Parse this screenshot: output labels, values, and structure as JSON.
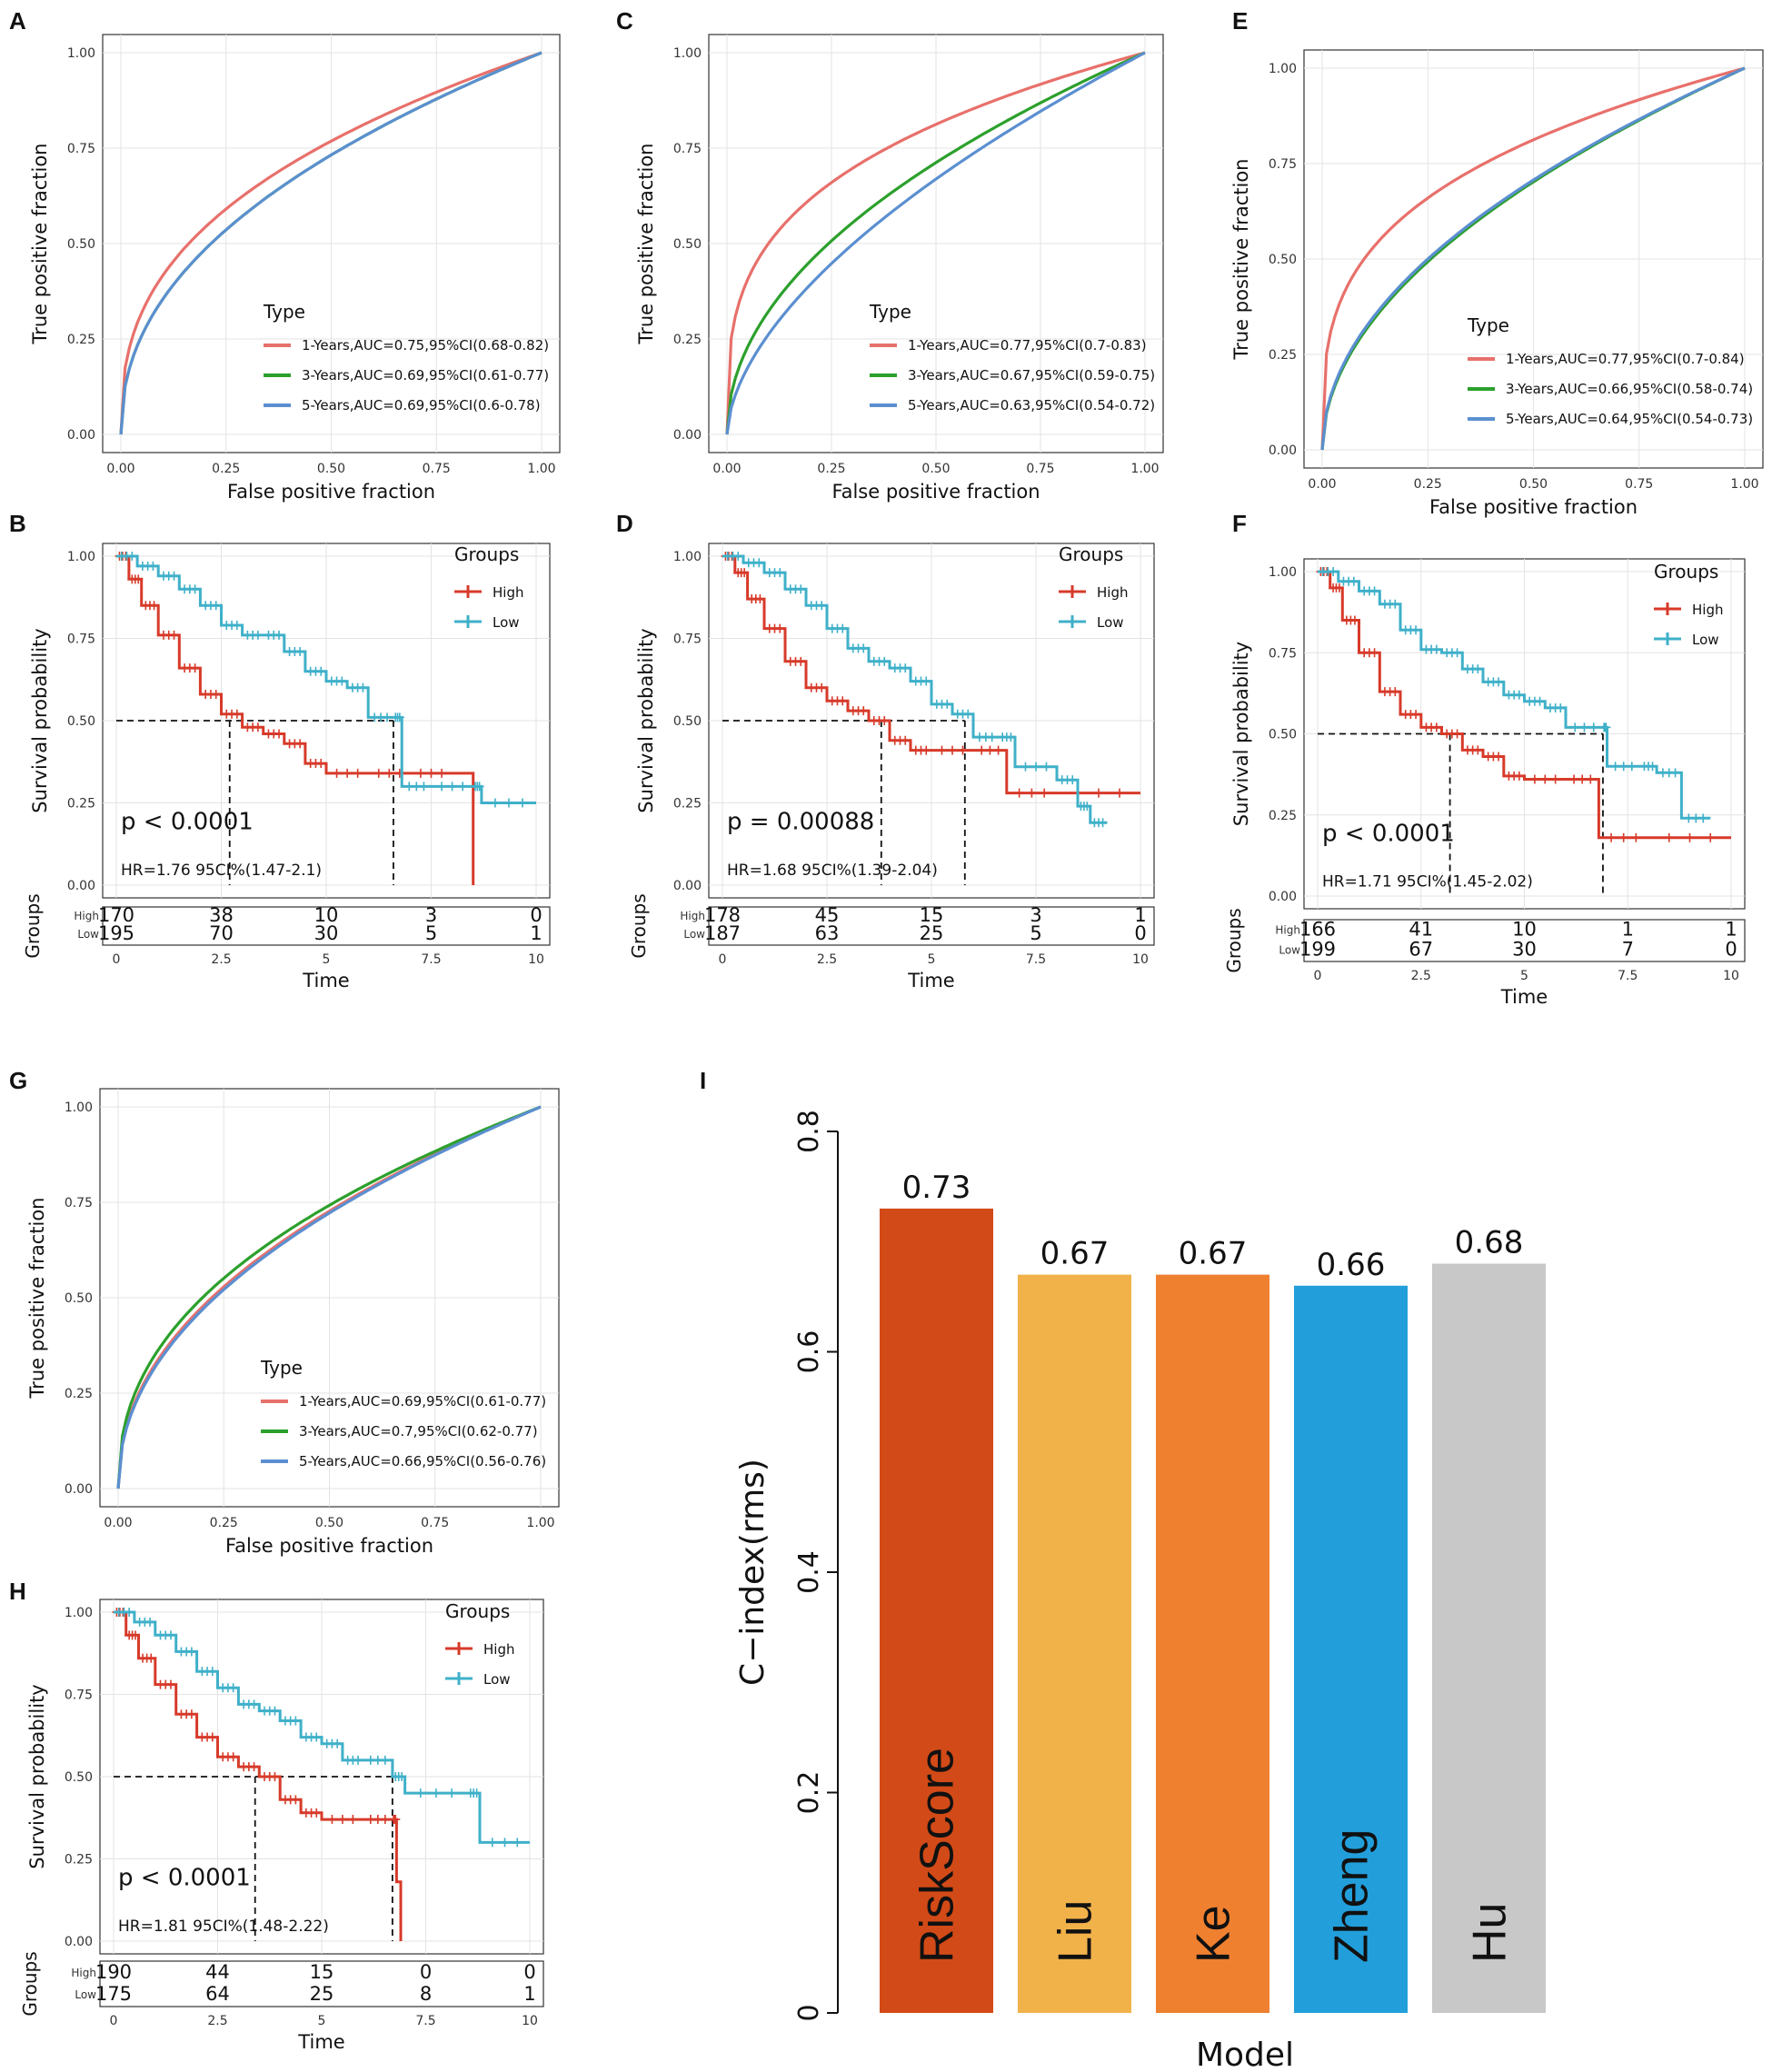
{
  "figure": {
    "letters": {
      "A": "A",
      "B": "B",
      "C": "C",
      "D": "D",
      "E": "E",
      "F": "F",
      "G": "G",
      "H": "H",
      "I": "I"
    }
  },
  "chart_data": [
    {
      "id": "A",
      "type": "line",
      "subtype": "roc",
      "xlabel": "False positive fraction",
      "ylabel": "True positive fraction",
      "ticks": [
        "0.00",
        "0.25",
        "0.50",
        "0.75",
        "1.00"
      ],
      "xlim": [
        0,
        1
      ],
      "ylim": [
        0,
        1
      ],
      "legend_title": "Type",
      "series": [
        {
          "name": "1-Years,AUC=0.75,95%CI(0.68-0.82)",
          "color": "#e8706b",
          "exponent": 0.38
        },
        {
          "name": "3-Years,AUC=0.69,95%CI(0.61-0.77)",
          "color": "#2ca02c",
          "exponent": 0.45
        },
        {
          "name": "5-Years,AUC=0.69,95%CI(0.6-0.78)",
          "color": "#5b8fd0",
          "exponent": 0.45
        }
      ]
    },
    {
      "id": "C",
      "type": "line",
      "subtype": "roc",
      "xlabel": "False positive fraction",
      "ylabel": "True positive fraction",
      "ticks": [
        "0.00",
        "0.25",
        "0.50",
        "0.75",
        "1.00"
      ],
      "xlim": [
        0,
        1
      ],
      "ylim": [
        0,
        1
      ],
      "legend_title": "Type",
      "series": [
        {
          "name": "1-Years,AUC=0.77,95%CI(0.7-0.83)",
          "color": "#e8706b",
          "exponent": 0.3
        },
        {
          "name": "3-Years,AUC=0.67,95%CI(0.59-0.75)",
          "color": "#2ca02c",
          "exponent": 0.49
        },
        {
          "name": "5-Years,AUC=0.63,95%CI(0.54-0.72)",
          "color": "#5b8fd0",
          "exponent": 0.58
        }
      ]
    },
    {
      "id": "E",
      "type": "line",
      "subtype": "roc",
      "xlabel": "False positive fraction",
      "ylabel": "True positive fraction",
      "ticks": [
        "0.00",
        "0.25",
        "0.50",
        "0.75",
        "1.00"
      ],
      "xlim": [
        0,
        1
      ],
      "ylim": [
        0,
        1
      ],
      "legend_title": "Type",
      "series": [
        {
          "name": "1-Years,AUC=0.77,95%CI(0.7-0.84)",
          "color": "#e8706b",
          "exponent": 0.3
        },
        {
          "name": "3-Years,AUC=0.66,95%CI(0.58-0.74)",
          "color": "#2ca02c",
          "exponent": 0.51
        },
        {
          "name": "5-Years,AUC=0.64,95%CI(0.54-0.73)",
          "color": "#5b8fd0",
          "exponent": 0.5
        }
      ]
    },
    {
      "id": "G",
      "type": "line",
      "subtype": "roc",
      "xlabel": "False positive fraction",
      "ylabel": "True positive fraction",
      "ticks": [
        "0.00",
        "0.25",
        "0.50",
        "0.75",
        "1.00"
      ],
      "xlim": [
        0,
        1
      ],
      "ylim": [
        0,
        1
      ],
      "legend_title": "Type",
      "series": [
        {
          "name": "1-Years,AUC=0.69,95%CI(0.61-0.77)",
          "color": "#e8706b",
          "exponent": 0.46
        },
        {
          "name": "3-Years,AUC=0.7,95%CI(0.62-0.77)",
          "color": "#2ca02c",
          "exponent": 0.43
        },
        {
          "name": "5-Years,AUC=0.66,95%CI(0.56-0.76)",
          "color": "#5b8fd0",
          "exponent": 0.47
        }
      ]
    },
    {
      "id": "B",
      "type": "line",
      "subtype": "km",
      "xlabel": "Time",
      "ylabel": "Survival probability",
      "xticks": [
        "0",
        "2.5",
        "5",
        "7.5",
        "10"
      ],
      "yticks": [
        "0.00",
        "0.25",
        "0.50",
        "0.75",
        "1.00"
      ],
      "xlim": [
        0,
        10
      ],
      "ylim": [
        0,
        1
      ],
      "legend_title": "Groups",
      "groups_label": "Groups",
      "p_text": "p < 0.0001",
      "hr_text": "HR=1.76 95CI%(1.47-2.1)",
      "median_high": 2.7,
      "median_low": 6.6,
      "series": [
        {
          "name": "High",
          "color": "#d73a2a",
          "points": [
            [
              0,
              1
            ],
            [
              0.3,
              0.93
            ],
            [
              0.6,
              0.85
            ],
            [
              1,
              0.76
            ],
            [
              1.5,
              0.66
            ],
            [
              2,
              0.58
            ],
            [
              2.5,
              0.52
            ],
            [
              3,
              0.48
            ],
            [
              3.5,
              0.46
            ],
            [
              4,
              0.43
            ],
            [
              4.5,
              0.37
            ],
            [
              5,
              0.34
            ],
            [
              6,
              0.34
            ],
            [
              7,
              0.34
            ],
            [
              8,
              0.34
            ],
            [
              8.5,
              0
            ]
          ]
        },
        {
          "name": "Low",
          "color": "#3fb0c9",
          "points": [
            [
              0,
              1
            ],
            [
              0.5,
              0.97
            ],
            [
              1,
              0.94
            ],
            [
              1.5,
              0.9
            ],
            [
              2,
              0.85
            ],
            [
              2.5,
              0.79
            ],
            [
              3,
              0.76
            ],
            [
              3.5,
              0.76
            ],
            [
              4,
              0.71
            ],
            [
              4.5,
              0.65
            ],
            [
              5,
              0.62
            ],
            [
              5.5,
              0.6
            ],
            [
              6,
              0.51
            ],
            [
              6.6,
              0.51
            ],
            [
              6.8,
              0.3
            ],
            [
              7.5,
              0.3
            ],
            [
              8.5,
              0.3
            ],
            [
              8.7,
              0.25
            ],
            [
              10,
              0.25
            ]
          ]
        }
      ],
      "risk_table": {
        "labels": [
          "High",
          "Low"
        ],
        "high": [
          "170",
          "38",
          "10",
          "3",
          "0"
        ],
        "low": [
          "195",
          "70",
          "30",
          "5",
          "1"
        ]
      }
    },
    {
      "id": "D",
      "type": "line",
      "subtype": "km",
      "xlabel": "Time",
      "ylabel": "Survival probability",
      "xticks": [
        "0",
        "2.5",
        "5",
        "7.5",
        "10"
      ],
      "yticks": [
        "0.00",
        "0.25",
        "0.50",
        "0.75",
        "1.00"
      ],
      "xlim": [
        0,
        10
      ],
      "ylim": [
        0,
        1
      ],
      "legend_title": "Groups",
      "groups_label": "Groups",
      "p_text": "p = 0.00088",
      "hr_text": "HR=1.68 95CI%(1.39-2.04)",
      "median_high": 3.8,
      "median_low": 5.8,
      "series": [
        {
          "name": "High",
          "color": "#d73a2a",
          "points": [
            [
              0,
              1
            ],
            [
              0.3,
              0.95
            ],
            [
              0.6,
              0.87
            ],
            [
              1,
              0.78
            ],
            [
              1.5,
              0.68
            ],
            [
              2,
              0.6
            ],
            [
              2.5,
              0.56
            ],
            [
              3,
              0.53
            ],
            [
              3.5,
              0.5
            ],
            [
              4,
              0.44
            ],
            [
              4.5,
              0.41
            ],
            [
              5,
              0.41
            ],
            [
              6,
              0.41
            ],
            [
              6.8,
              0.28
            ],
            [
              8,
              0.28
            ],
            [
              10,
              0.28
            ]
          ]
        },
        {
          "name": "Low",
          "color": "#3fb0c9",
          "points": [
            [
              0,
              1
            ],
            [
              0.5,
              0.98
            ],
            [
              1,
              0.95
            ],
            [
              1.5,
              0.9
            ],
            [
              2,
              0.85
            ],
            [
              2.5,
              0.78
            ],
            [
              3,
              0.72
            ],
            [
              3.5,
              0.68
            ],
            [
              4,
              0.66
            ],
            [
              4.5,
              0.62
            ],
            [
              5,
              0.55
            ],
            [
              5.5,
              0.52
            ],
            [
              6,
              0.45
            ],
            [
              6.6,
              0.45
            ],
            [
              7,
              0.36
            ],
            [
              8,
              0.32
            ],
            [
              8.5,
              0.24
            ],
            [
              8.8,
              0.19
            ],
            [
              9.2,
              0.19
            ]
          ]
        }
      ],
      "risk_table": {
        "labels": [
          "High",
          "Low"
        ],
        "high": [
          "178",
          "45",
          "15",
          "3",
          "1"
        ],
        "low": [
          "187",
          "63",
          "25",
          "5",
          "0"
        ]
      }
    },
    {
      "id": "F",
      "type": "line",
      "subtype": "km",
      "xlabel": "Time",
      "ylabel": "Survival probability",
      "xticks": [
        "0",
        "2.5",
        "5",
        "7.5",
        "10"
      ],
      "yticks": [
        "0.00",
        "0.25",
        "0.50",
        "0.75",
        "1.00"
      ],
      "xlim": [
        0,
        10
      ],
      "ylim": [
        0,
        1
      ],
      "legend_title": "Groups",
      "groups_label": "Groups",
      "p_text": "p < 0.0001",
      "hr_text": "HR=1.71 95CI%(1.45-2.02)",
      "median_high": 3.2,
      "median_low": 6.9,
      "series": [
        {
          "name": "High",
          "color": "#d73a2a",
          "points": [
            [
              0,
              1
            ],
            [
              0.3,
              0.95
            ],
            [
              0.6,
              0.85
            ],
            [
              1,
              0.75
            ],
            [
              1.5,
              0.63
            ],
            [
              2,
              0.56
            ],
            [
              2.5,
              0.52
            ],
            [
              3,
              0.5
            ],
            [
              3.5,
              0.45
            ],
            [
              4,
              0.43
            ],
            [
              4.5,
              0.37
            ],
            [
              5,
              0.36
            ],
            [
              6,
              0.36
            ],
            [
              6.8,
              0.18
            ],
            [
              8,
              0.18
            ],
            [
              10,
              0.18
            ]
          ]
        },
        {
          "name": "Low",
          "color": "#3fb0c9",
          "points": [
            [
              0,
              1
            ],
            [
              0.5,
              0.97
            ],
            [
              1,
              0.94
            ],
            [
              1.5,
              0.9
            ],
            [
              2,
              0.82
            ],
            [
              2.5,
              0.76
            ],
            [
              3,
              0.75
            ],
            [
              3.5,
              0.7
            ],
            [
              4,
              0.66
            ],
            [
              4.5,
              0.62
            ],
            [
              5,
              0.6
            ],
            [
              5.5,
              0.58
            ],
            [
              6,
              0.52
            ],
            [
              6.9,
              0.52
            ],
            [
              7,
              0.4
            ],
            [
              7.8,
              0.4
            ],
            [
              8.2,
              0.38
            ],
            [
              8.8,
              0.24
            ],
            [
              9.5,
              0.24
            ]
          ]
        }
      ],
      "risk_table": {
        "labels": [
          "High",
          "Low"
        ],
        "high": [
          "166",
          "41",
          "10",
          "1",
          "1"
        ],
        "low": [
          "199",
          "67",
          "30",
          "7",
          "0"
        ]
      }
    },
    {
      "id": "H",
      "type": "line",
      "subtype": "km",
      "xlabel": "Time",
      "ylabel": "Survival probability",
      "xticks": [
        "0",
        "2.5",
        "5",
        "7.5",
        "10"
      ],
      "yticks": [
        "0.00",
        "0.25",
        "0.50",
        "0.75",
        "1.00"
      ],
      "xlim": [
        0,
        10
      ],
      "ylim": [
        0,
        1
      ],
      "legend_title": "Groups",
      "groups_label": "Groups",
      "p_text": "p < 0.0001",
      "hr_text": "HR=1.81 95CI%(1.48-2.22)",
      "median_high": 3.4,
      "median_low": 6.7,
      "series": [
        {
          "name": "High",
          "color": "#d73a2a",
          "points": [
            [
              0,
              1
            ],
            [
              0.3,
              0.93
            ],
            [
              0.6,
              0.86
            ],
            [
              1,
              0.78
            ],
            [
              1.5,
              0.69
            ],
            [
              2,
              0.62
            ],
            [
              2.5,
              0.56
            ],
            [
              3,
              0.53
            ],
            [
              3.5,
              0.5
            ],
            [
              4,
              0.43
            ],
            [
              4.5,
              0.39
            ],
            [
              5,
              0.37
            ],
            [
              6,
              0.37
            ],
            [
              6.7,
              0.37
            ],
            [
              6.8,
              0.18
            ],
            [
              6.9,
              0
            ]
          ]
        },
        {
          "name": "Low",
          "color": "#3fb0c9",
          "points": [
            [
              0,
              1
            ],
            [
              0.5,
              0.97
            ],
            [
              1,
              0.93
            ],
            [
              1.5,
              0.88
            ],
            [
              2,
              0.82
            ],
            [
              2.5,
              0.77
            ],
            [
              3,
              0.72
            ],
            [
              3.5,
              0.7
            ],
            [
              4,
              0.67
            ],
            [
              4.5,
              0.62
            ],
            [
              5,
              0.6
            ],
            [
              5.5,
              0.55
            ],
            [
              6,
              0.55
            ],
            [
              6.7,
              0.5
            ],
            [
              7,
              0.45
            ],
            [
              8.5,
              0.45
            ],
            [
              8.8,
              0.3
            ],
            [
              10,
              0.3
            ]
          ]
        }
      ],
      "risk_table": {
        "labels": [
          "High",
          "Low"
        ],
        "high": [
          "190",
          "44",
          "15",
          "0",
          "0"
        ],
        "low": [
          "175",
          "64",
          "25",
          "8",
          "1"
        ]
      }
    },
    {
      "id": "I",
      "type": "bar",
      "title": "",
      "xlabel": "Model",
      "ylabel": "C−index(rms)",
      "categories": [
        "RiskScore",
        "Liu",
        "Ke",
        "Zheng",
        "Hu"
      ],
      "values": [
        0.73,
        0.67,
        0.67,
        0.66,
        0.68
      ],
      "value_labels": [
        "0.73",
        "0.67",
        "0.67",
        "0.66",
        "0.68"
      ],
      "colors": [
        "#d24a17",
        "#f2b24a",
        "#ef8030",
        "#229fdb",
        "#c8c8c8"
      ],
      "yticks": [
        "0",
        "0.2",
        "0.4",
        "0.6",
        "0.8"
      ],
      "ylim": [
        0,
        0.8
      ]
    }
  ]
}
